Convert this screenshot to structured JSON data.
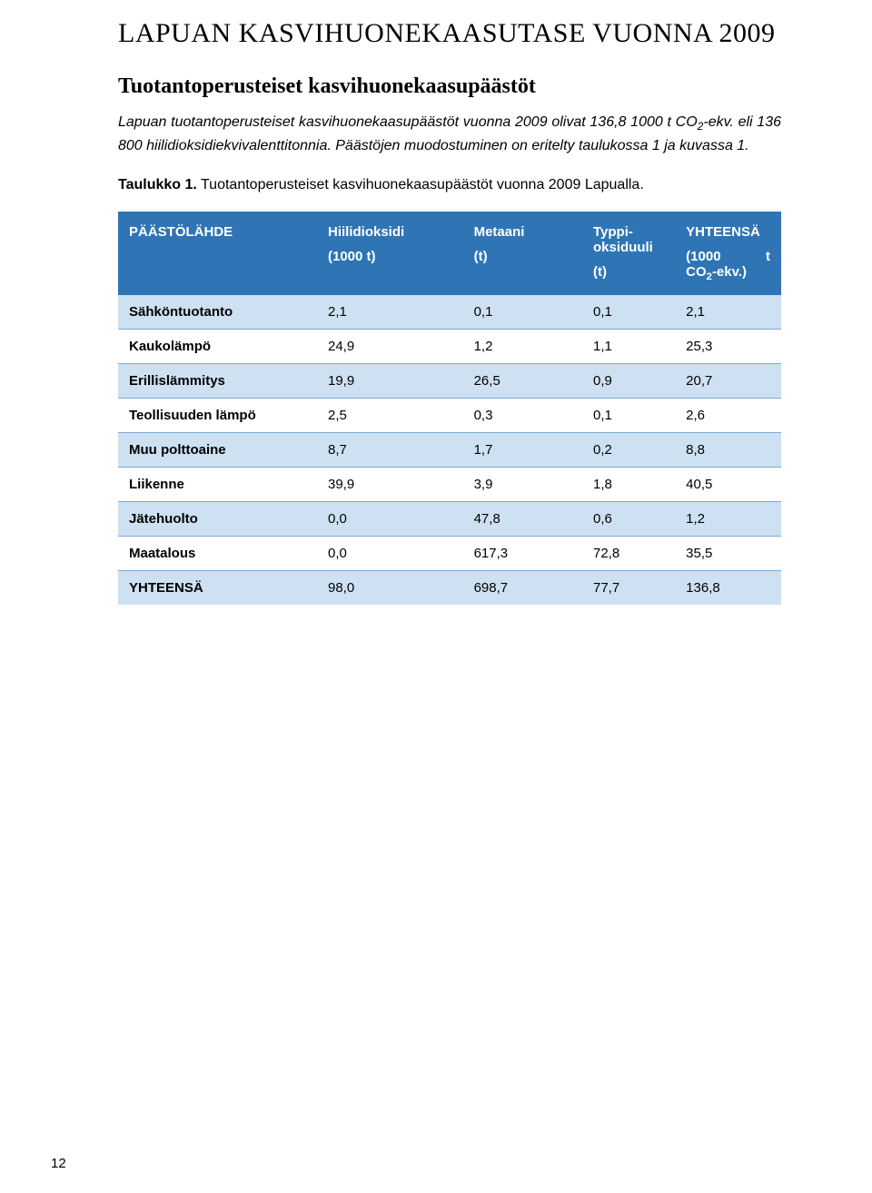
{
  "title": "LAPUAN KASVIHUONEKAASUTASE VUONNA 2009",
  "subtitle": "Tuotantoperusteiset kasvihuonekaasupäästöt",
  "paragraph_parts": {
    "p1": "Lapuan tuotantoperusteiset kasvihuonekaasupäästöt vuonna 2009 olivat 136,8 1000 t CO",
    "p1_sub": "2",
    "p1_after": "-ekv. eli 136 800 hiilidioksidiekvivalenttitonnia. Päästöjen muodostuminen on eritelty taulukossa 1 ja kuvassa 1."
  },
  "caption": {
    "bold": "Taulukko 1.",
    "rest": " Tuotantoperusteiset kasvihuonekaasupäästöt vuonna 2009 Lapualla."
  },
  "table": {
    "header_bg": "#2f75b5",
    "row_alt_bg": "#cde1f2",
    "columns": [
      {
        "top": "PÄÄSTÖLÄHDE",
        "bottom": ""
      },
      {
        "top": "Hiilidioksidi",
        "bottom": "(1000 t)"
      },
      {
        "top": "Metaani",
        "bottom": "(t)"
      },
      {
        "top": "Typpi-oksiduuli",
        "bottom": "(t)"
      },
      {
        "top": "YHTEENSÄ",
        "bottom_left": "(1000",
        "bottom_right": "t",
        "bottom2_pre": "CO",
        "bottom2_sub": "2",
        "bottom2_post": "-ekv.)"
      }
    ],
    "rows": [
      {
        "label": "Sähköntuotanto",
        "v": [
          "2,1",
          "0,1",
          "0,1",
          "2,1"
        ]
      },
      {
        "label": "Kaukolämpö",
        "v": [
          "24,9",
          "1,2",
          "1,1",
          "25,3"
        ]
      },
      {
        "label": "Erillislämmitys",
        "v": [
          "19,9",
          "26,5",
          "0,9",
          "20,7"
        ]
      },
      {
        "label": "Teollisuuden lämpö",
        "v": [
          "2,5",
          "0,3",
          "0,1",
          "2,6"
        ]
      },
      {
        "label": "Muu polttoaine",
        "v": [
          "8,7",
          "1,7",
          "0,2",
          "8,8"
        ]
      },
      {
        "label": "Liikenne",
        "v": [
          "39,9",
          "3,9",
          "1,8",
          "40,5"
        ]
      },
      {
        "label": "Jätehuolto",
        "v": [
          "0,0",
          "47,8",
          "0,6",
          "1,2"
        ]
      },
      {
        "label": "Maatalous",
        "v": [
          "0,0",
          "617,3",
          "72,8",
          "35,5"
        ]
      },
      {
        "label": "YHTEENSÄ",
        "v": [
          "98,0",
          "698,7",
          "77,7",
          "136,8"
        ]
      }
    ]
  },
  "page_number": "12"
}
